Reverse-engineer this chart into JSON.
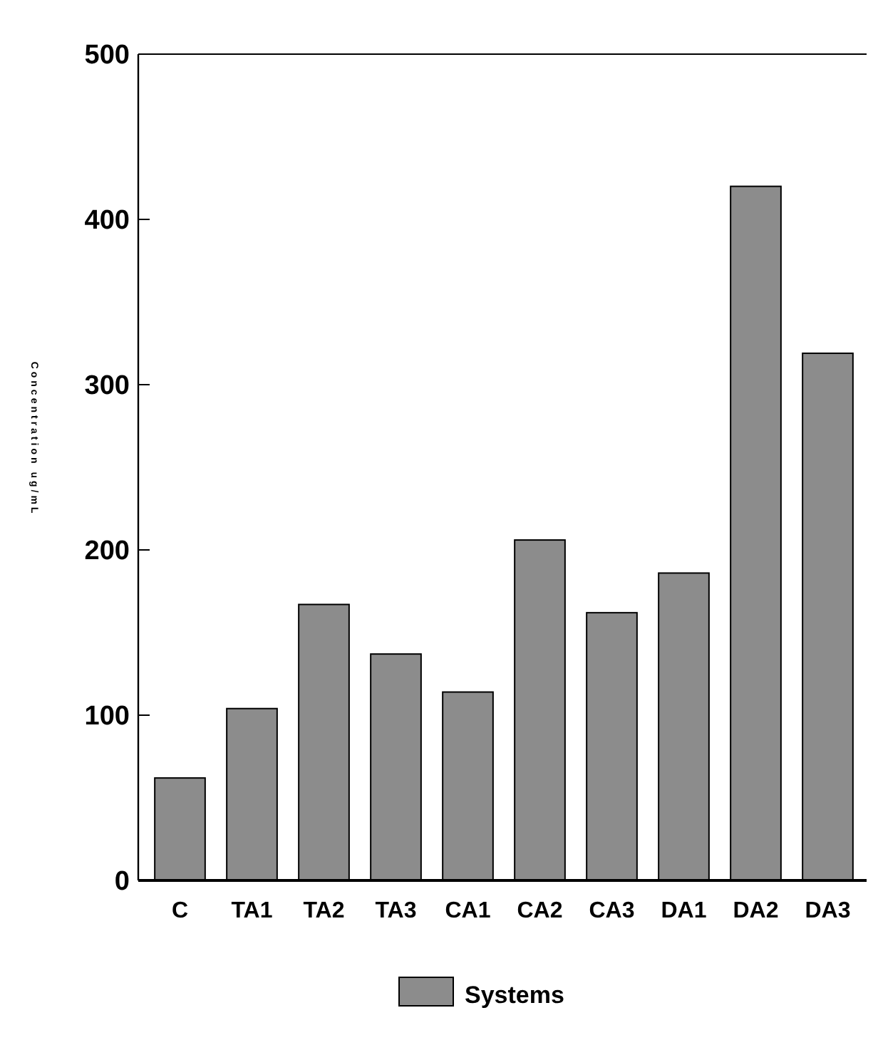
{
  "chart_data": {
    "type": "bar",
    "ylabel": "Concentration ug/mL",
    "categories": [
      "C",
      "TA1",
      "TA2",
      "TA3",
      "CA1",
      "CA2",
      "CA3",
      "DA1",
      "DA2",
      "DA3"
    ],
    "series": [
      {
        "name": "Systems",
        "color": "#8c8c8c",
        "values": [
          62,
          104,
          167,
          137,
          114,
          206,
          162,
          186,
          420,
          319
        ]
      }
    ],
    "ylim": [
      0,
      500
    ],
    "yticks": [
      0,
      100,
      200,
      300,
      400,
      500
    ],
    "grid": false,
    "legend": "bottom"
  }
}
